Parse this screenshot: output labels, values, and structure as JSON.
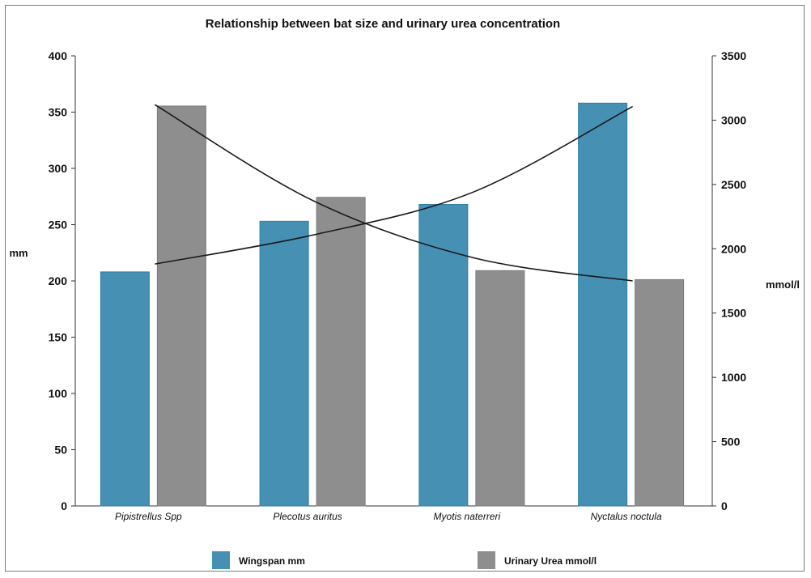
{
  "chart_data": {
    "type": "bar",
    "title": "Relationship between bat size and urinary urea concentration",
    "categories": [
      "Pipistrellus Spp",
      "Plecotus auritus",
      "Myotis naterreri",
      "Nyctalus noctula"
    ],
    "series": [
      {
        "name": "Wingspan mm",
        "axis": "left",
        "color": "#4590b3",
        "values": [
          208,
          253,
          268,
          358
        ]
      },
      {
        "name": "Urinary Urea mmol/l",
        "axis": "right",
        "color": "#8e8e8e",
        "values": [
          3110,
          2400,
          1830,
          1760
        ]
      }
    ],
    "trendlines": [
      {
        "series": "Wingspan mm",
        "axis": "left",
        "color": "#1a1a1a",
        "values": [
          215,
          241,
          279,
          355
        ]
      },
      {
        "series": "Urinary Urea mmol/l",
        "axis": "right",
        "color": "#1a1a1a",
        "values": [
          3120,
          2370,
          1930,
          1750
        ]
      }
    ],
    "ylabel": "mm",
    "ylim": [
      0,
      400
    ],
    "yticks": [
      0,
      50,
      100,
      150,
      200,
      250,
      300,
      350,
      400
    ],
    "y2label": "mmol/l",
    "y2lim": [
      0,
      3500
    ],
    "y2ticks": [
      0,
      500,
      1000,
      1500,
      2000,
      2500,
      3000,
      3500
    ],
    "legend": {
      "position": "bottom",
      "entries": [
        "Wingspan mm",
        "Urinary Urea mmol/l"
      ]
    },
    "grid": false
  }
}
